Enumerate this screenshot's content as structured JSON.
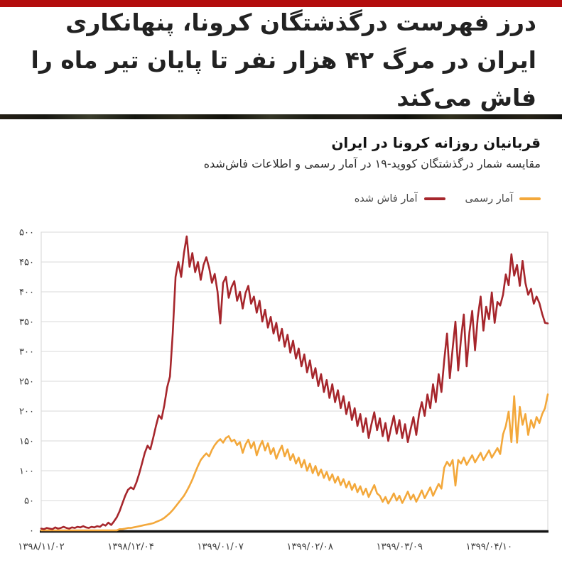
{
  "page": {
    "top_bar_color": "#b30d0d",
    "headline": "درز فهرست درگذشتگان کرونا، پنهانکاری ایران در مرگ ۴۲ هزار نفر تا پایان تیر ماه را فاش می‌کند"
  },
  "chart": {
    "title": "قربانیان روزانه کرونا در ایران",
    "subtitle": "مقایسه شمار درگذشتگان کووید-۱۹ در آمار رسمی و اطلاعات فاش‌شده"
  },
  "chart_data": {
    "type": "line",
    "title": "قربانیان روزانه کرونا در ایران",
    "subtitle": "مقایسه شمار درگذشتگان کووید-۱۹ در آمار رسمی و اطلاعات فاش‌شده",
    "grid": true,
    "legend_position": "top-right",
    "ylim": [
      0,
      500
    ],
    "y_tick_step": 50,
    "y_tick_labels": [
      "۰",
      "۵۰",
      "۱۰۰",
      "۱۵۰",
      "۲۰۰",
      "۲۵۰",
      "۳۰۰",
      "۳۵۰",
      "۴۰۰",
      "۴۵۰",
      "۵۰۰"
    ],
    "x_range_days": [
      0,
      181
    ],
    "x_tick_days": [
      0,
      32,
      64,
      96,
      128,
      160
    ],
    "x_tick_labels": [
      "۱۳۹۸/۱۱/۰۲",
      "۱۳۹۸/۱۲/۰۴",
      "۱۳۹۹/۰۱/۰۷",
      "۱۳۹۹/۰۲/۰۸",
      "۱۳۹۹/۰۳/۰۹",
      "۱۳۹۹/۰۴/۱۰"
    ],
    "axis_color": "#141414",
    "gridline_color": "#d9d9d9",
    "tick_label_color": "#3c3c3c",
    "series": [
      {
        "name": "آمار رسمی",
        "color": "#f3a83b",
        "values": [
          0,
          0,
          0,
          0,
          0,
          0,
          0,
          0,
          0,
          0,
          0,
          0,
          0,
          0,
          0,
          0,
          0,
          0,
          0,
          0,
          0,
          0,
          0,
          0,
          0,
          0,
          0,
          0,
          2,
          2,
          3,
          4,
          4,
          5,
          6,
          7,
          8,
          9,
          10,
          11,
          12,
          14,
          16,
          18,
          21,
          25,
          29,
          34,
          40,
          46,
          52,
          58,
          66,
          75,
          85,
          97,
          108,
          118,
          124,
          129,
          124,
          135,
          143,
          149,
          153,
          147,
          155,
          158,
          149,
          152,
          143,
          148,
          130,
          144,
          152,
          138,
          148,
          126,
          140,
          150,
          134,
          146,
          128,
          138,
          120,
          132,
          142,
          124,
          136,
          118,
          128,
          112,
          122,
          106,
          118,
          100,
          112,
          96,
          108,
          92,
          102,
          88,
          98,
          84,
          94,
          80,
          90,
          76,
          86,
          72,
          82,
          68,
          78,
          64,
          74,
          60,
          70,
          56,
          66,
          76,
          62,
          58,
          48,
          56,
          45,
          53,
          62,
          50,
          58,
          46,
          55,
          65,
          52,
          60,
          48,
          57,
          67,
          54,
          63,
          72,
          58,
          68,
          78,
          70,
          105,
          115,
          108,
          118,
          75,
          118,
          112,
          122,
          110,
          118,
          126,
          114,
          122,
          130,
          118,
          126,
          134,
          122,
          130,
          138,
          128,
          161,
          175,
          199,
          148,
          225,
          147,
          207,
          177,
          195,
          160,
          185,
          172,
          190,
          180,
          195,
          205,
          228
        ]
      },
      {
        "name": "آمار فاش شده",
        "color": "#a6262c",
        "values": [
          3,
          2,
          4,
          3,
          2,
          5,
          3,
          4,
          6,
          4,
          3,
          5,
          4,
          6,
          5,
          7,
          5,
          4,
          6,
          5,
          7,
          6,
          10,
          8,
          13,
          9,
          15,
          22,
          32,
          45,
          58,
          68,
          72,
          69,
          80,
          95,
          112,
          130,
          142,
          136,
          155,
          175,
          193,
          187,
          210,
          240,
          258,
          330,
          425,
          450,
          425,
          465,
          493,
          442,
          465,
          433,
          450,
          420,
          445,
          458,
          440,
          415,
          430,
          400,
          347,
          415,
          425,
          390,
          408,
          418,
          385,
          400,
          372,
          398,
          410,
          380,
          392,
          365,
          385,
          350,
          370,
          340,
          358,
          330,
          348,
          318,
          338,
          308,
          328,
          298,
          318,
          288,
          305,
          275,
          295,
          265,
          285,
          255,
          272,
          242,
          262,
          232,
          252,
          222,
          245,
          215,
          235,
          205,
          225,
          195,
          215,
          185,
          205,
          175,
          195,
          165,
          188,
          155,
          178,
          198,
          168,
          188,
          158,
          180,
          150,
          172,
          192,
          162,
          185,
          155,
          178,
          148,
          170,
          190,
          160,
          195,
          215,
          192,
          228,
          205,
          245,
          215,
          262,
          232,
          285,
          330,
          255,
          305,
          350,
          268,
          322,
          362,
          275,
          332,
          368,
          302,
          358,
          392,
          335,
          375,
          354,
          399,
          348,
          383,
          377,
          395,
          429,
          411,
          463,
          427,
          445,
          410,
          452,
          415,
          395,
          405,
          380,
          392,
          381,
          363,
          348,
          347
        ]
      }
    ]
  }
}
